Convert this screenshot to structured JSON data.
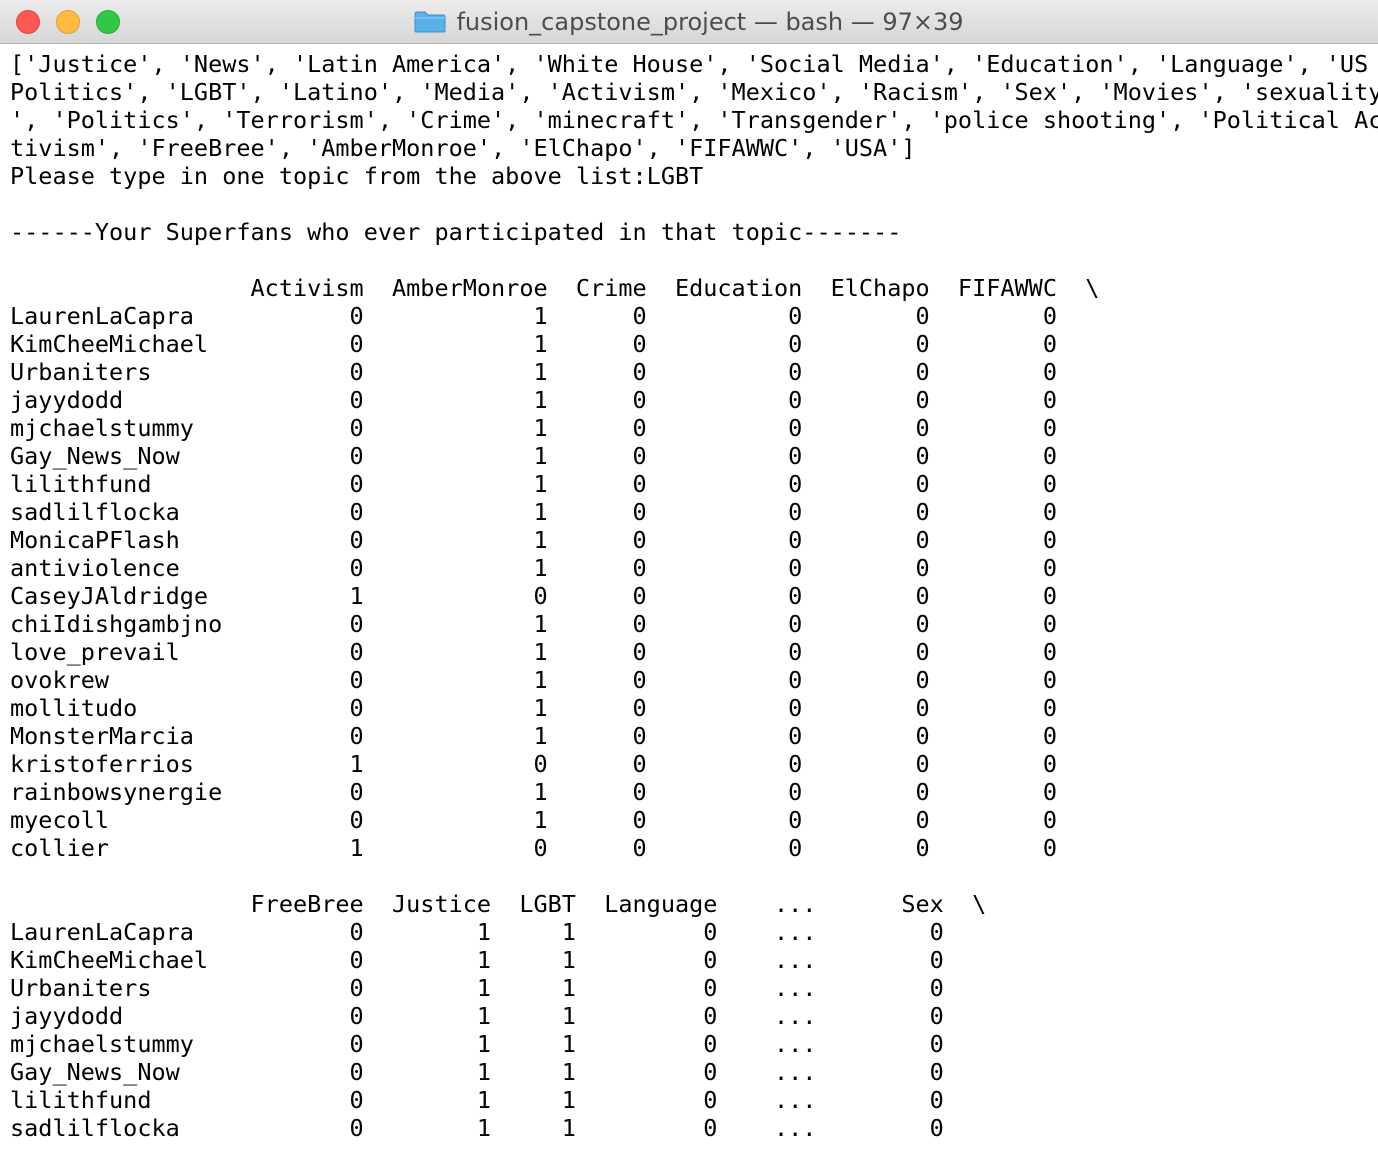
{
  "window": {
    "title": "fusion_capstone_project — bash — 97×39",
    "folder_icon": "folder-icon"
  },
  "terminal": {
    "lines": [
      "['Justice', 'News', 'Latin America', 'White House', 'Social Media', 'Education', 'Language', 'US",
      "Politics', 'LGBT', 'Latino', 'Media', 'Activism', 'Mexico', 'Racism', 'Sex', 'Movies', 'sexuality",
      "', 'Politics', 'Terrorism', 'Crime', 'minecraft', 'Transgender', 'police shooting', 'Political Ac",
      "tivism', 'FreeBree', 'AmberMonroe', 'ElChapo', 'FIFAWWC', 'USA']",
      "Please type in one topic from the above list:LGBT",
      "",
      "------Your Superfans who ever participated in that topic-------",
      "",
      "                 Activism  AmberMonroe  Crime  Education  ElChapo  FIFAWWC  \\",
      "LaurenLaCapra           0            1      0          0        0        0",
      "KimCheeMichael          0            1      0          0        0        0",
      "Urbaniters              0            1      0          0        0        0",
      "jayydodd                0            1      0          0        0        0",
      "mjchaelstummy           0            1      0          0        0        0",
      "Gay_News_Now            0            1      0          0        0        0",
      "lilithfund              0            1      0          0        0        0",
      "sadlilflocka            0            1      0          0        0        0",
      "MonicaPFlash            0            1      0          0        0        0",
      "antiviolence            0            1      0          0        0        0",
      "CaseyJAldridge          1            0      0          0        0        0",
      "chiIdishgambjno         0            1      0          0        0        0",
      "love_prevail            0            1      0          0        0        0",
      "ovokrew                 0            1      0          0        0        0",
      "mollitudo               0            1      0          0        0        0",
      "MonsterMarcia           0            1      0          0        0        0",
      "kristoferrios           1            0      0          0        0        0",
      "rainbowsynergie         0            1      0          0        0        0",
      "myecoll                 0            1      0          0        0        0",
      "collier                 1            0      0          0        0        0",
      "",
      "                 FreeBree  Justice  LGBT  Language    ...      Sex  \\",
      "LaurenLaCapra           0        1     1         0    ...        0",
      "KimCheeMichael          0        1     1         0    ...        0",
      "Urbaniters              0        1     1         0    ...        0",
      "jayydodd                0        1     1         0    ...        0",
      "mjchaelstummy           0        1     1         0    ...        0",
      "Gay_News_Now            0        1     1         0    ...        0",
      "lilithfund              0        1     1         0    ...        0",
      "sadlilflocka            0        1     1         0    ...        0"
    ]
  }
}
